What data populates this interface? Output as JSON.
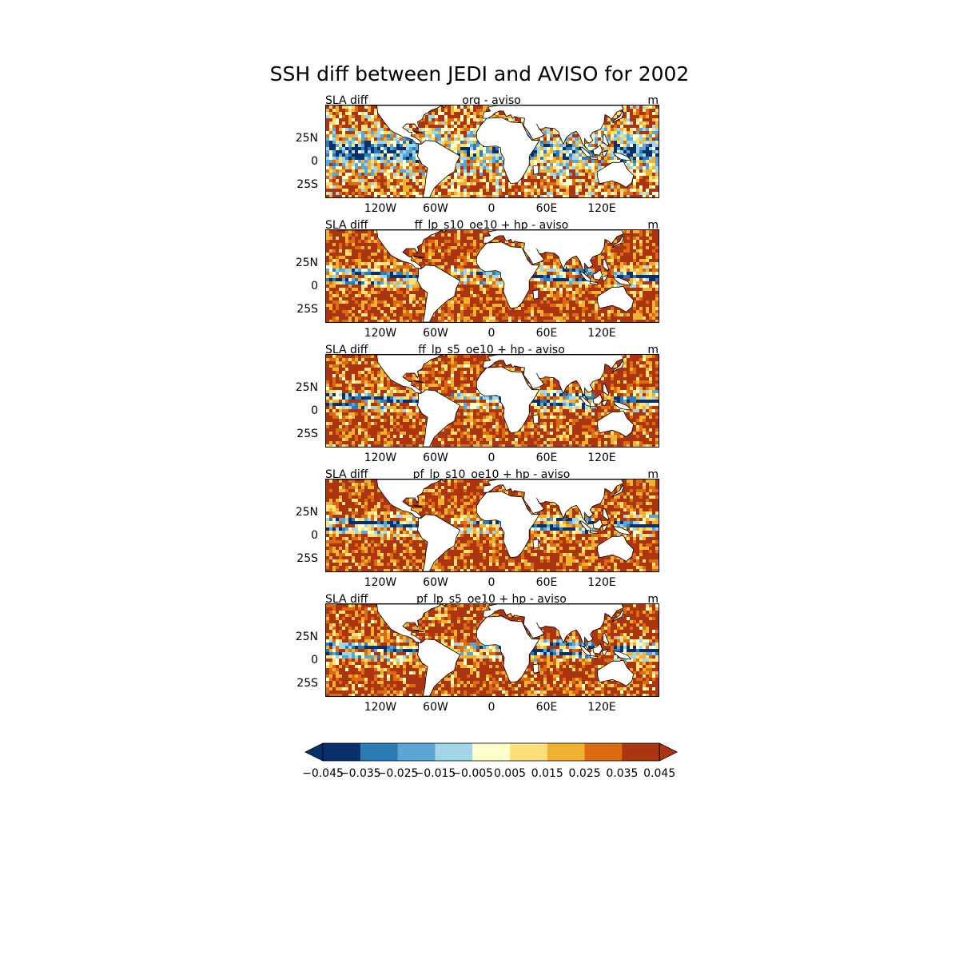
{
  "title": "SSH diff between JEDI and AVISO for 2002",
  "panels": [
    {
      "left": "SLA diff",
      "center": "org - aviso",
      "right": "m",
      "pattern": "light"
    },
    {
      "left": "SLA diff",
      "center": "ff_lp_s10_oe10 + hp - aviso",
      "right": "m",
      "pattern": "strong"
    },
    {
      "left": "SLA diff",
      "center": "ff_lp_s5_oe10 + hp - aviso",
      "right": "m",
      "pattern": "medium"
    },
    {
      "left": "SLA diff",
      "center": "pf_lp_s10_oe10 + hp - aviso",
      "right": "m",
      "pattern": "strong"
    },
    {
      "left": "SLA diff",
      "center": "pf_lp_s5_oe10 + hp - aviso",
      "right": "m",
      "pattern": "medium"
    }
  ],
  "lat_ticks": [
    "25N",
    "0",
    "25S"
  ],
  "lon_ticks": [
    "120W",
    "60W",
    "0",
    "60E",
    "120E"
  ],
  "colorbar": {
    "labels": [
      "−0.045",
      "−0.035",
      "−0.025",
      "−0.015",
      "−0.005",
      "0.005",
      "0.015",
      "0.025",
      "0.035",
      "0.045"
    ],
    "colors": [
      "#08306b",
      "#2c7bb6",
      "#5aa6d4",
      "#a1d5e8",
      "#ffffcc",
      "#fee07a",
      "#f0b030",
      "#dc6a10",
      "#aa3510"
    ],
    "extend": "both"
  },
  "chart_data": {
    "type": "heatmap",
    "title": "SSH diff between JEDI and AVISO for 2002",
    "variable": "SLA diff",
    "units": "m",
    "lon_range": [
      -180,
      180
    ],
    "lat_range": [
      -50,
      50
    ],
    "lon_ticks": [
      -120,
      -60,
      0,
      60,
      120
    ],
    "lat_ticks": [
      25,
      0,
      -25
    ],
    "levels": [
      -0.045,
      -0.035,
      -0.025,
      -0.015,
      -0.005,
      0.005,
      0.015,
      0.025,
      0.035,
      0.045
    ],
    "subplots": [
      "org - aviso",
      "ff_lp_s10_oe10 + hp - aviso",
      "ff_lp_s5_oe10 + hp - aviso",
      "pf_lp_s10_oe10 + hp - aviso",
      "pf_lp_s5_oe10 + hp - aviso"
    ]
  }
}
